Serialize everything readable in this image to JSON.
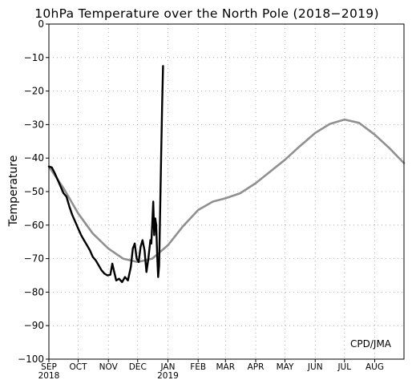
{
  "chart_data": {
    "type": "line",
    "title": "10hPa Temperature over the North Pole (2018−2019)",
    "xlabel": "",
    "ylabel": "Temperature",
    "ylim": [
      -100,
      0
    ],
    "yticks": [
      0,
      -10,
      -20,
      -30,
      -40,
      -50,
      -60,
      -70,
      -80,
      -90,
      -100
    ],
    "ytick_labels": [
      "0",
      "−10",
      "−20",
      "−30",
      "−40",
      "−50",
      "−60",
      "−70",
      "−80",
      "−90",
      "−100"
    ],
    "x_start": "2018-09-01",
    "x_end": "2019-08-31",
    "xticks": [
      {
        "label": "SEP",
        "sublabel": "2018",
        "date": "2018-09-01"
      },
      {
        "label": "OCT",
        "sublabel": "",
        "date": "2018-10-01"
      },
      {
        "label": "NOV",
        "sublabel": "",
        "date": "2018-11-01"
      },
      {
        "label": "DEC",
        "sublabel": "",
        "date": "2018-12-01"
      },
      {
        "label": "JAN",
        "sublabel": "2019",
        "date": "2019-01-01"
      },
      {
        "label": "FEB",
        "sublabel": "",
        "date": "2019-02-01"
      },
      {
        "label": "MAR",
        "sublabel": "",
        "date": "2019-03-01"
      },
      {
        "label": "APR",
        "sublabel": "",
        "date": "2019-04-01"
      },
      {
        "label": "MAY",
        "sublabel": "",
        "date": "2019-05-01"
      },
      {
        "label": "JUN",
        "sublabel": "",
        "date": "2019-06-01"
      },
      {
        "label": "JUL",
        "sublabel": "",
        "date": "2019-07-01"
      },
      {
        "label": "AUG",
        "sublabel": "",
        "date": "2019-08-01"
      }
    ],
    "grid": true,
    "annotation": "CPD/JMA",
    "series": [
      {
        "name": "",
        "color": "#909090",
        "points": [
          [
            "2018-09-01",
            -42.5
          ],
          [
            "2018-09-16",
            -49.0
          ],
          [
            "2018-10-01",
            -56.5
          ],
          [
            "2018-10-16",
            -62.5
          ],
          [
            "2018-11-01",
            -67.0
          ],
          [
            "2018-11-16",
            -70.0
          ],
          [
            "2018-12-01",
            -71.0
          ],
          [
            "2018-12-16",
            -70.0
          ],
          [
            "2019-01-01",
            -66.0
          ],
          [
            "2019-01-16",
            -60.5
          ],
          [
            "2019-02-01",
            -55.5
          ],
          [
            "2019-02-16",
            -53.0
          ],
          [
            "2019-03-01",
            -52.0
          ],
          [
            "2019-03-16",
            -50.5
          ],
          [
            "2019-04-01",
            -47.5
          ],
          [
            "2019-04-16",
            -44.0
          ],
          [
            "2019-05-01",
            -40.5
          ],
          [
            "2019-05-16",
            -36.5
          ],
          [
            "2019-06-01",
            -32.5
          ],
          [
            "2019-06-16",
            -29.8
          ],
          [
            "2019-07-01",
            -28.5
          ],
          [
            "2019-07-16",
            -29.5
          ],
          [
            "2019-08-01",
            -33.0
          ],
          [
            "2019-08-16",
            -37.0
          ],
          [
            "2019-08-31",
            -41.5
          ]
        ]
      },
      {
        "name": "",
        "color": "#000000",
        "points": [
          [
            "2018-09-01",
            -42.5
          ],
          [
            "2018-09-04",
            -42.8
          ],
          [
            "2018-09-07",
            -44.5
          ],
          [
            "2018-09-10",
            -46.5
          ],
          [
            "2018-09-13",
            -48.5
          ],
          [
            "2018-09-16",
            -50.5
          ],
          [
            "2018-09-19",
            -51.5
          ],
          [
            "2018-09-22",
            -54.5
          ],
          [
            "2018-09-25",
            -57.0
          ],
          [
            "2018-09-28",
            -59.0
          ],
          [
            "2018-10-01",
            -61.0
          ],
          [
            "2018-10-04",
            -63.0
          ],
          [
            "2018-10-07",
            -64.5
          ],
          [
            "2018-10-10",
            -66.0
          ],
          [
            "2018-10-13",
            -67.5
          ],
          [
            "2018-10-16",
            -69.5
          ],
          [
            "2018-10-19",
            -70.5
          ],
          [
            "2018-10-22",
            -72.0
          ],
          [
            "2018-10-25",
            -73.5
          ],
          [
            "2018-10-28",
            -74.5
          ],
          [
            "2018-10-31",
            -75.0
          ],
          [
            "2018-11-03",
            -74.8
          ],
          [
            "2018-11-05",
            -71.5
          ],
          [
            "2018-11-07",
            -74.0
          ],
          [
            "2018-11-09",
            -76.5
          ],
          [
            "2018-11-12",
            -76.0
          ],
          [
            "2018-11-15",
            -77.0
          ],
          [
            "2018-11-18",
            -75.5
          ],
          [
            "2018-11-21",
            -76.5
          ],
          [
            "2018-11-24",
            -72.5
          ],
          [
            "2018-11-26",
            -67.0
          ],
          [
            "2018-11-28",
            -65.5
          ],
          [
            "2018-11-30",
            -70.0
          ],
          [
            "2018-12-02",
            -71.0
          ],
          [
            "2018-12-04",
            -66.5
          ],
          [
            "2018-12-06",
            -64.5
          ],
          [
            "2018-12-08",
            -67.5
          ],
          [
            "2018-12-10",
            -74.0
          ],
          [
            "2018-12-12",
            -70.0
          ],
          [
            "2018-12-14",
            -64.5
          ],
          [
            "2018-12-15",
            -65.5
          ],
          [
            "2018-12-17",
            -53.0
          ],
          [
            "2018-12-18",
            -63.0
          ],
          [
            "2018-12-19",
            -58.0
          ],
          [
            "2018-12-20",
            -60.0
          ],
          [
            "2018-12-21",
            -69.0
          ],
          [
            "2018-12-22",
            -75.5
          ],
          [
            "2018-12-23",
            -72.0
          ],
          [
            "2018-12-24",
            -57.0
          ],
          [
            "2018-12-25",
            -40.0
          ],
          [
            "2018-12-26",
            -25.0
          ],
          [
            "2018-12-27",
            -12.5
          ]
        ]
      }
    ]
  }
}
